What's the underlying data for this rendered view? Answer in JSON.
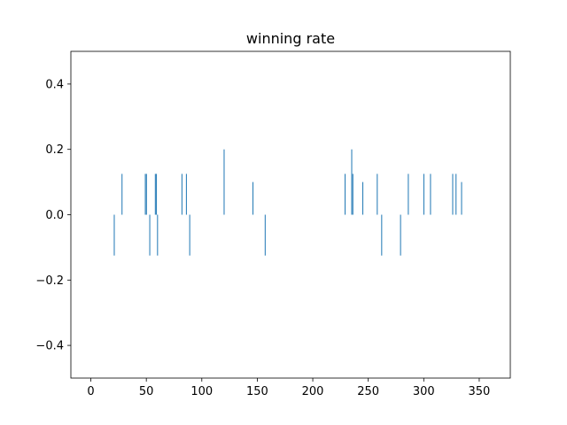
{
  "chart_data": {
    "type": "bar",
    "title": "winning rate",
    "xlabel": "",
    "ylabel": "",
    "xlim": [
      -18,
      378
    ],
    "ylim": [
      -0.5,
      0.5
    ],
    "xticks": [
      0,
      50,
      100,
      150,
      200,
      250,
      300,
      350
    ],
    "xtick_labels": [
      "0",
      "50",
      "100",
      "150",
      "200",
      "250",
      "300",
      "350"
    ],
    "yticks": [
      -0.4,
      -0.2,
      0.0,
      0.2,
      0.4
    ],
    "ytick_labels": [
      "−0.4",
      "−0.2",
      "0.0",
      "0.2",
      "0.4"
    ],
    "bar_width": 0.6,
    "bar_color": "#1f77b4",
    "x": [
      21,
      28,
      49,
      50,
      53,
      58,
      59,
      60,
      82,
      86,
      89,
      120,
      146,
      157,
      229,
      235,
      236,
      245,
      258,
      262,
      279,
      286,
      300,
      306,
      326,
      329,
      334
    ],
    "values": [
      -0.125,
      0.125,
      0.125,
      0.125,
      -0.125,
      0.125,
      0.125,
      -0.125,
      0.125,
      0.125,
      -0.125,
      0.2,
      0.1,
      -0.125,
      0.125,
      0.2,
      0.125,
      0.1,
      0.125,
      -0.125,
      -0.125,
      0.125,
      0.125,
      0.125,
      0.125,
      0.125,
      0.1
    ]
  }
}
